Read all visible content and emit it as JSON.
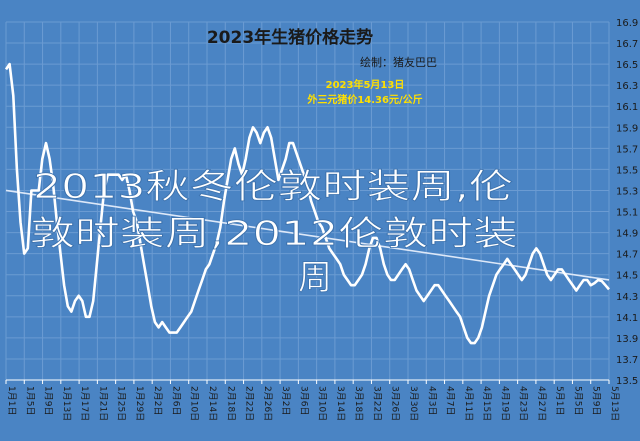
{
  "chart_data": {
    "type": "line",
    "title": "2023年生猪价格走势",
    "author_label": "绘制：",
    "author_name": "猪友巴巴",
    "annotation": {
      "date": "2023年5月13日",
      "text": "外三元猪价14.36元/公斤"
    },
    "overlay_text": {
      "line1": "2013秋冬伦敦时装周,伦",
      "line2": "敦时装周,2012伦敦时装",
      "line3": "周"
    },
    "y_ticks": [
      "16.9",
      "16.7",
      "16.5",
      "16.3",
      "16.1",
      "15.9",
      "15.7",
      "15.5",
      "15.3",
      "15.1",
      "14.9",
      "14.7",
      "14.5",
      "14.3",
      "14.1",
      "13.9",
      "13.7",
      "13.5"
    ],
    "ylim": [
      13.5,
      16.9
    ],
    "x_tick_labels": [
      "1月1日",
      "1月5日",
      "1月9日",
      "1月13日",
      "1月17日",
      "1月21日",
      "1月25日",
      "1月29日",
      "2月2日",
      "2月6日",
      "2月10日",
      "2月14日",
      "2月18日",
      "2月22日",
      "2月26日",
      "3月2日",
      "3月6日",
      "3月10日",
      "3月14日",
      "3月18日",
      "3月22日",
      "3月26日",
      "3月30日",
      "4月3日",
      "4月7日",
      "4月11日",
      "4月15日",
      "4月19日",
      "4月23日",
      "4月27日",
      "5月1日",
      "5月5日",
      "5月9日",
      "5月13日"
    ],
    "series": [
      {
        "values": [
          16.45,
          16.5,
          16.2,
          15.5,
          15.0,
          14.7,
          14.75,
          15.3,
          15.3,
          15.3,
          15.6,
          15.75,
          15.6,
          15.35,
          15.0,
          14.7,
          14.4,
          14.2,
          14.15,
          14.25,
          14.3,
          14.25,
          14.1,
          14.1,
          14.25,
          14.6,
          14.95,
          15.3,
          15.45,
          15.45,
          15.45,
          15.45,
          15.4,
          15.45,
          15.3,
          15.1,
          15.0,
          14.8,
          14.6,
          14.4,
          14.2,
          14.05,
          14.0,
          14.05,
          14.0,
          13.95,
          13.95,
          13.95,
          14.0,
          14.05,
          14.1,
          14.15,
          14.25,
          14.35,
          14.45,
          14.55,
          14.6,
          14.7,
          14.8,
          14.95,
          15.2,
          15.4,
          15.6,
          15.7,
          15.55,
          15.45,
          15.6,
          15.8,
          15.9,
          15.85,
          15.75,
          15.85,
          15.9,
          15.8,
          15.6,
          15.4,
          15.5,
          15.6,
          15.75,
          15.75,
          15.65,
          15.55,
          15.45,
          15.35,
          15.2,
          15.1,
          15.0,
          14.95,
          14.85,
          14.75,
          14.7,
          14.65,
          14.6,
          14.5,
          14.45,
          14.4,
          14.4,
          14.45,
          14.5,
          14.6,
          14.75,
          14.85,
          14.85,
          14.75,
          14.6,
          14.5,
          14.45,
          14.45,
          14.5,
          14.55,
          14.6,
          14.55,
          14.45,
          14.35,
          14.3,
          14.25,
          14.3,
          14.35,
          14.4,
          14.4,
          14.35,
          14.3,
          14.25,
          14.2,
          14.15,
          14.1,
          14.0,
          13.9,
          13.85,
          13.85,
          13.9,
          14.0,
          14.15,
          14.3,
          14.4,
          14.5,
          14.55,
          14.6,
          14.65,
          14.6,
          14.55,
          14.5,
          14.45,
          14.5,
          14.6,
          14.7,
          14.75,
          14.7,
          14.6,
          14.5,
          14.45,
          14.5,
          14.55,
          14.55,
          14.5,
          14.45,
          14.4,
          14.35,
          14.4,
          14.45,
          14.45,
          14.4,
          14.42,
          14.45,
          14.44,
          14.4,
          14.36
        ]
      }
    ],
    "trendline": {
      "start": 15.3,
      "end": 14.45
    },
    "grid": true
  }
}
